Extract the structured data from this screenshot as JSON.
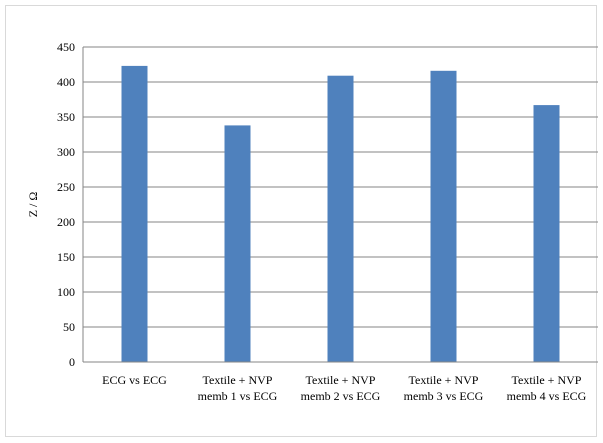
{
  "chart_data": {
    "type": "bar",
    "title": "",
    "xlabel": "",
    "ylabel": "Z / Ω",
    "ylim": [
      0,
      450
    ],
    "yticks": [
      0,
      50,
      100,
      150,
      200,
      250,
      300,
      350,
      400,
      450
    ],
    "grid": true,
    "legend": "none",
    "bar_color": "#4f81bd",
    "grid_color": "#868686",
    "categories": [
      [
        "ECG vs ECG"
      ],
      [
        "Textile + NVP",
        "memb 1 vs ECG"
      ],
      [
        "Textile + NVP",
        "memb 2 vs ECG"
      ],
      [
        "Textile + NVP",
        "memb 3 vs ECG"
      ],
      [
        "Textile + NVP",
        "memb 4 vs ECG"
      ]
    ],
    "values": [
      423,
      338,
      409,
      416,
      367
    ]
  }
}
